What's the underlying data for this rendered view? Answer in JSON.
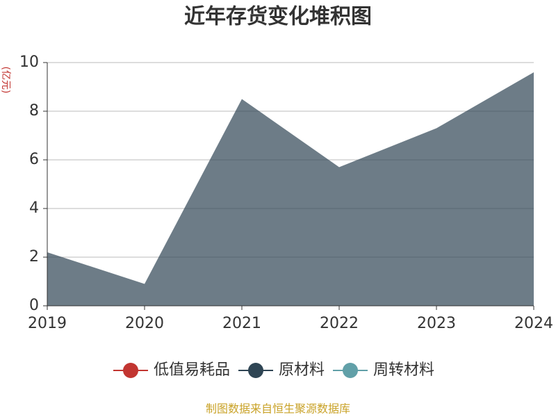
{
  "chart_data": {
    "type": "stacked_area",
    "title": "近年存货变化堆积图",
    "y_label": "(亿元)",
    "x": [
      2019,
      2020,
      2021,
      2022,
      2023,
      2024
    ],
    "xlim": [
      2019,
      2024
    ],
    "xticks": [
      2019,
      2020,
      2021,
      2022,
      2023,
      2024
    ],
    "ylim": [
      0,
      10
    ],
    "yticks": [
      0,
      2,
      4,
      6,
      8,
      10
    ],
    "grid": true,
    "series": [
      {
        "name": "低值易耗品",
        "color": "#c23531",
        "values": [
          0,
          0,
          0,
          0,
          0,
          0
        ]
      },
      {
        "name": "原材料",
        "color": "#2f4554",
        "values": [
          2.2,
          0.9,
          8.5,
          5.7,
          7.3,
          9.6
        ]
      },
      {
        "name": "周转材料",
        "color": "#61a0a8",
        "values": [
          0,
          0,
          0,
          0,
          0,
          0
        ]
      }
    ],
    "legend": "bottom",
    "footer": "制图数据来自恒生聚源数据库"
  }
}
